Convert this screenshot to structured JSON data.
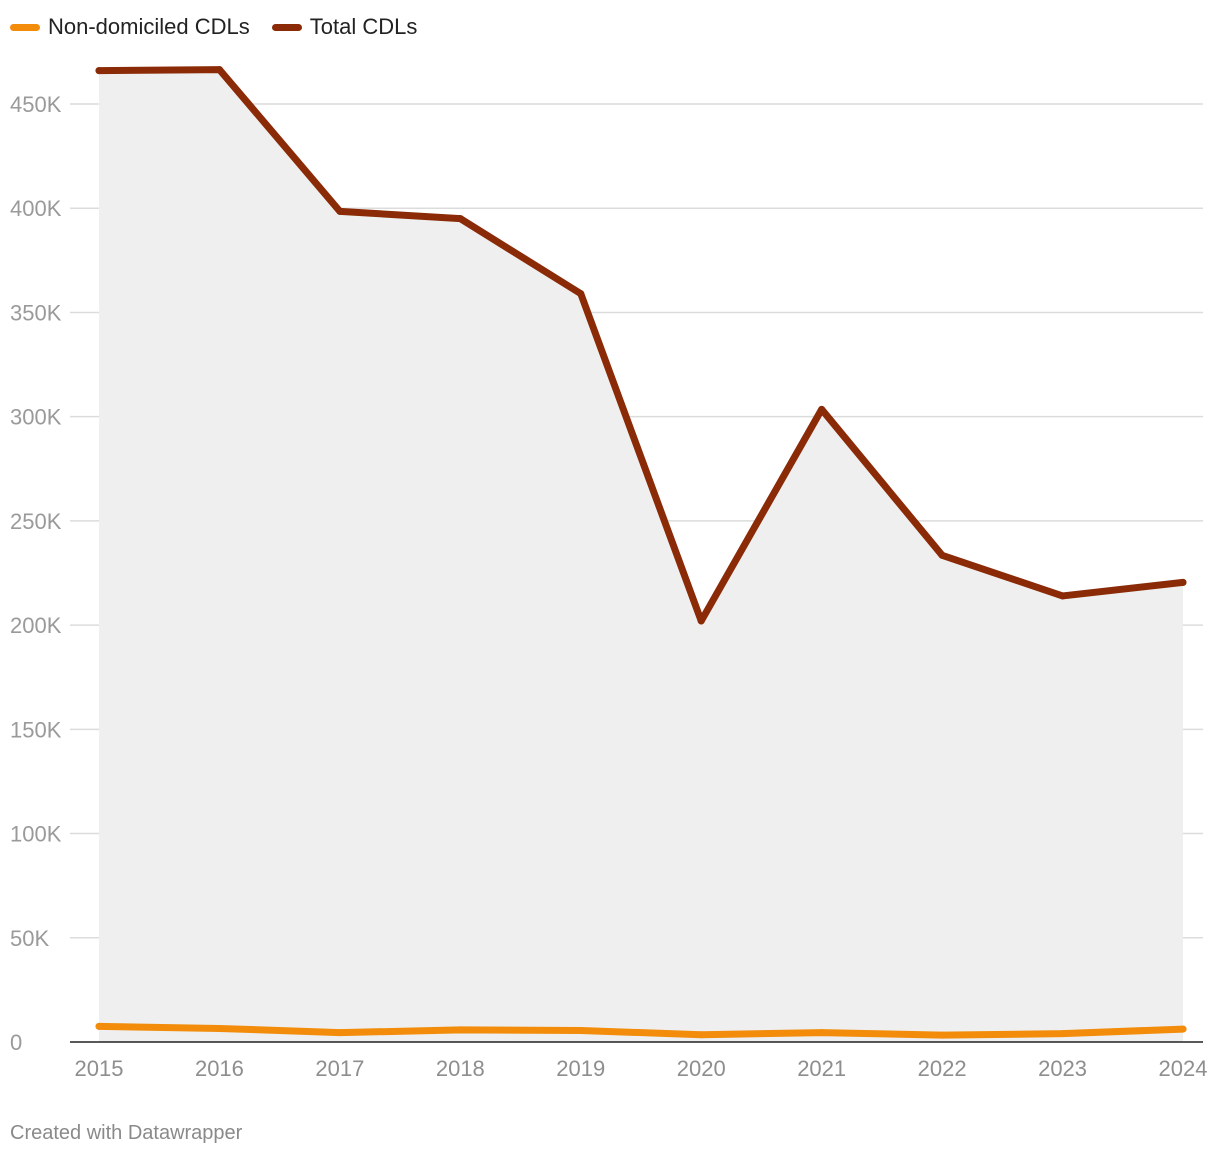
{
  "legend": {
    "items": [
      {
        "label": "Non-domiciled CDLs",
        "color": "#f28c0a"
      },
      {
        "label": "Total CDLs",
        "color": "#8a2a06"
      }
    ]
  },
  "footer": {
    "credit": "Created with Datawrapper"
  },
  "chart_data": {
    "type": "line",
    "title": "",
    "xlabel": "",
    "ylabel": "",
    "x": [
      "2015",
      "2016",
      "2017",
      "2018",
      "2019",
      "2020",
      "2021",
      "2022",
      "2023",
      "2024"
    ],
    "y_ticks": [
      0,
      50000,
      100000,
      150000,
      200000,
      250000,
      300000,
      350000,
      400000,
      450000
    ],
    "y_tick_labels": [
      "0",
      "50K",
      "100K",
      "150K",
      "200K",
      "250K",
      "300K",
      "350K",
      "400K",
      "450K"
    ],
    "ylim": [
      0,
      470000
    ],
    "grid": true,
    "legend_position": "top-left",
    "area_fill_under": "Total CDLs",
    "area_fill_color": "#efefef",
    "series": [
      {
        "name": "Non-domiciled CDLs",
        "color": "#f28c0a",
        "values": [
          7500,
          6500,
          4500,
          5800,
          5500,
          3500,
          4500,
          3300,
          4000,
          6200
        ]
      },
      {
        "name": "Total CDLs",
        "color": "#8a2a06",
        "values": [
          466000,
          466500,
          398500,
          395000,
          359000,
          202000,
          303500,
          233500,
          214000,
          220500
        ]
      }
    ]
  }
}
